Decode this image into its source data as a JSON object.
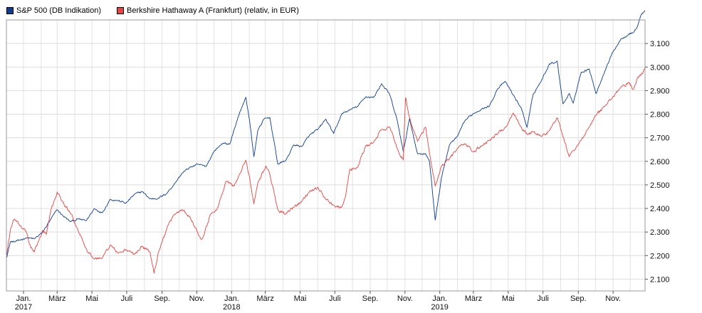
{
  "legend": [
    {
      "label": "S&P 500 (DB Indikation)",
      "color": "#0b3d91"
    },
    {
      "label": "Berkshire Hathaway A (Frankfurt) (relativ, in EUR)",
      "color": "#e8433f"
    }
  ],
  "chart_data": {
    "type": "line",
    "title": "",
    "xlabel": "",
    "ylabel": "",
    "xlim": [
      "2016-12-02",
      "2019-12-27"
    ],
    "ylim": [
      2050,
      3200
    ],
    "y_ticks": [
      2100,
      2200,
      2300,
      2400,
      2500,
      2600,
      2700,
      2800,
      2900,
      3000,
      3100
    ],
    "y_tick_labels": [
      "2.100",
      "2.200",
      "2.300",
      "2.400",
      "2.500",
      "2.600",
      "2.700",
      "2.800",
      "2.900",
      "3.000",
      "3.100"
    ],
    "x_ticks": [
      {
        "date": "2017-01-01",
        "label": "Jan.",
        "year": "2017"
      },
      {
        "date": "2017-03-01",
        "label": "März",
        "year": ""
      },
      {
        "date": "2017-05-01",
        "label": "Mai",
        "year": ""
      },
      {
        "date": "2017-07-01",
        "label": "Juli",
        "year": ""
      },
      {
        "date": "2017-09-01",
        "label": "Sep.",
        "year": ""
      },
      {
        "date": "2017-11-01",
        "label": "Nov.",
        "year": ""
      },
      {
        "date": "2018-01-01",
        "label": "Jan.",
        "year": "2018"
      },
      {
        "date": "2018-03-01",
        "label": "März",
        "year": ""
      },
      {
        "date": "2018-05-01",
        "label": "Mai",
        "year": ""
      },
      {
        "date": "2018-07-01",
        "label": "Juli",
        "year": ""
      },
      {
        "date": "2018-09-01",
        "label": "Sep.",
        "year": ""
      },
      {
        "date": "2018-11-01",
        "label": "Nov.",
        "year": ""
      },
      {
        "date": "2019-01-01",
        "label": "Jan.",
        "year": "2019"
      },
      {
        "date": "2019-03-01",
        "label": "März",
        "year": ""
      },
      {
        "date": "2019-05-01",
        "label": "Mai",
        "year": ""
      },
      {
        "date": "2019-07-01",
        "label": "Juli",
        "year": ""
      },
      {
        "date": "2019-09-01",
        "label": "Sep.",
        "year": ""
      },
      {
        "date": "2019-11-01",
        "label": "Nov.",
        "year": ""
      }
    ],
    "grid": true,
    "legend_position": "top-left",
    "series": [
      {
        "name": "S&P 500 (DB Indikation)",
        "color": "#0b3d91",
        "points": [
          [
            "2016-12-02",
            2190
          ],
          [
            "2016-12-09",
            2259
          ],
          [
            "2016-12-16",
            2258
          ],
          [
            "2016-12-23",
            2264
          ],
          [
            "2017-01-06",
            2276
          ],
          [
            "2017-01-20",
            2271
          ],
          [
            "2017-02-03",
            2297
          ],
          [
            "2017-02-17",
            2351
          ],
          [
            "2017-03-01",
            2395
          ],
          [
            "2017-03-10",
            2372
          ],
          [
            "2017-03-24",
            2344
          ],
          [
            "2017-04-07",
            2355
          ],
          [
            "2017-04-21",
            2348
          ],
          [
            "2017-05-05",
            2399
          ],
          [
            "2017-05-19",
            2382
          ],
          [
            "2017-06-02",
            2439
          ],
          [
            "2017-06-16",
            2433
          ],
          [
            "2017-06-30",
            2423
          ],
          [
            "2017-07-14",
            2459
          ],
          [
            "2017-07-28",
            2472
          ],
          [
            "2017-08-11",
            2441
          ],
          [
            "2017-08-25",
            2443
          ],
          [
            "2017-09-08",
            2461
          ],
          [
            "2017-09-22",
            2502
          ],
          [
            "2017-10-06",
            2549
          ],
          [
            "2017-10-20",
            2575
          ],
          [
            "2017-11-03",
            2587
          ],
          [
            "2017-11-17",
            2578
          ],
          [
            "2017-12-01",
            2642
          ],
          [
            "2017-12-15",
            2675
          ],
          [
            "2017-12-29",
            2674
          ],
          [
            "2018-01-12",
            2786
          ],
          [
            "2018-01-26",
            2872
          ],
          [
            "2018-02-02",
            2762
          ],
          [
            "2018-02-09",
            2620
          ],
          [
            "2018-02-16",
            2732
          ],
          [
            "2018-02-27",
            2780
          ],
          [
            "2018-03-09",
            2786
          ],
          [
            "2018-03-23",
            2588
          ],
          [
            "2018-04-06",
            2604
          ],
          [
            "2018-04-20",
            2670
          ],
          [
            "2018-05-04",
            2663
          ],
          [
            "2018-05-18",
            2712
          ],
          [
            "2018-06-01",
            2734
          ],
          [
            "2018-06-15",
            2779
          ],
          [
            "2018-06-29",
            2718
          ],
          [
            "2018-07-13",
            2801
          ],
          [
            "2018-07-27",
            2818
          ],
          [
            "2018-08-10",
            2833
          ],
          [
            "2018-08-24",
            2874
          ],
          [
            "2018-09-07",
            2871
          ],
          [
            "2018-09-21",
            2929
          ],
          [
            "2018-10-05",
            2885
          ],
          [
            "2018-10-19",
            2767
          ],
          [
            "2018-10-29",
            2641
          ],
          [
            "2018-11-09",
            2781
          ],
          [
            "2018-11-23",
            2632
          ],
          [
            "2018-12-07",
            2633
          ],
          [
            "2018-12-14",
            2599
          ],
          [
            "2018-12-24",
            2351
          ],
          [
            "2019-01-04",
            2531
          ],
          [
            "2019-01-18",
            2670
          ],
          [
            "2019-02-01",
            2706
          ],
          [
            "2019-02-15",
            2775
          ],
          [
            "2019-03-01",
            2803
          ],
          [
            "2019-03-15",
            2822
          ],
          [
            "2019-03-29",
            2834
          ],
          [
            "2019-04-12",
            2907
          ],
          [
            "2019-04-26",
            2939
          ],
          [
            "2019-05-10",
            2881
          ],
          [
            "2019-05-24",
            2826
          ],
          [
            "2019-06-03",
            2744
          ],
          [
            "2019-06-14",
            2886
          ],
          [
            "2019-06-28",
            2941
          ],
          [
            "2019-07-12",
            3013
          ],
          [
            "2019-07-26",
            3025
          ],
          [
            "2019-08-05",
            2844
          ],
          [
            "2019-08-16",
            2888
          ],
          [
            "2019-08-23",
            2847
          ],
          [
            "2019-09-06",
            2978
          ],
          [
            "2019-09-20",
            2992
          ],
          [
            "2019-10-02",
            2887
          ],
          [
            "2019-10-18",
            2986
          ],
          [
            "2019-11-01",
            3066
          ],
          [
            "2019-11-15",
            3120
          ],
          [
            "2019-11-29",
            3141
          ],
          [
            "2019-12-06",
            3146
          ],
          [
            "2019-12-13",
            3168
          ],
          [
            "2019-12-20",
            3221
          ],
          [
            "2019-12-27",
            3240
          ]
        ]
      },
      {
        "name": "Berkshire Hathaway A (Frankfurt) (relativ, in EUR)",
        "color": "#e8433f",
        "points": [
          [
            "2016-12-02",
            2195
          ],
          [
            "2016-12-09",
            2310
          ],
          [
            "2016-12-16",
            2355
          ],
          [
            "2016-12-23",
            2335
          ],
          [
            "2017-01-06",
            2300
          ],
          [
            "2017-01-13",
            2240
          ],
          [
            "2017-01-20",
            2215
          ],
          [
            "2017-01-27",
            2260
          ],
          [
            "2017-02-03",
            2305
          ],
          [
            "2017-02-10",
            2290
          ],
          [
            "2017-02-17",
            2380
          ],
          [
            "2017-02-24",
            2435
          ],
          [
            "2017-03-01",
            2470
          ],
          [
            "2017-03-10",
            2430
          ],
          [
            "2017-03-24",
            2380
          ],
          [
            "2017-04-07",
            2305
          ],
          [
            "2017-04-21",
            2230
          ],
          [
            "2017-05-05",
            2185
          ],
          [
            "2017-05-19",
            2190
          ],
          [
            "2017-06-02",
            2245
          ],
          [
            "2017-06-16",
            2210
          ],
          [
            "2017-06-30",
            2225
          ],
          [
            "2017-07-14",
            2205
          ],
          [
            "2017-07-28",
            2240
          ],
          [
            "2017-08-11",
            2215
          ],
          [
            "2017-08-18",
            2125
          ],
          [
            "2017-08-25",
            2210
          ],
          [
            "2017-09-08",
            2305
          ],
          [
            "2017-09-22",
            2375
          ],
          [
            "2017-10-06",
            2395
          ],
          [
            "2017-10-20",
            2365
          ],
          [
            "2017-11-03",
            2295
          ],
          [
            "2017-11-10",
            2270
          ],
          [
            "2017-11-24",
            2370
          ],
          [
            "2017-12-08",
            2405
          ],
          [
            "2017-12-22",
            2515
          ],
          [
            "2018-01-05",
            2495
          ],
          [
            "2018-01-19",
            2565
          ],
          [
            "2018-01-26",
            2605
          ],
          [
            "2018-02-02",
            2525
          ],
          [
            "2018-02-09",
            2420
          ],
          [
            "2018-02-16",
            2510
          ],
          [
            "2018-03-02",
            2580
          ],
          [
            "2018-03-09",
            2545
          ],
          [
            "2018-03-23",
            2395
          ],
          [
            "2018-04-06",
            2375
          ],
          [
            "2018-04-20",
            2405
          ],
          [
            "2018-05-04",
            2430
          ],
          [
            "2018-05-18",
            2475
          ],
          [
            "2018-06-01",
            2490
          ],
          [
            "2018-06-15",
            2440
          ],
          [
            "2018-06-29",
            2415
          ],
          [
            "2018-07-13",
            2405
          ],
          [
            "2018-07-20",
            2455
          ],
          [
            "2018-07-27",
            2565
          ],
          [
            "2018-08-10",
            2575
          ],
          [
            "2018-08-24",
            2665
          ],
          [
            "2018-09-07",
            2680
          ],
          [
            "2018-09-21",
            2735
          ],
          [
            "2018-10-05",
            2745
          ],
          [
            "2018-10-19",
            2650
          ],
          [
            "2018-10-29",
            2605
          ],
          [
            "2018-11-02",
            2870
          ],
          [
            "2018-11-09",
            2785
          ],
          [
            "2018-11-23",
            2685
          ],
          [
            "2018-12-07",
            2745
          ],
          [
            "2018-12-14",
            2635
          ],
          [
            "2018-12-24",
            2495
          ],
          [
            "2019-01-04",
            2580
          ],
          [
            "2019-01-18",
            2610
          ],
          [
            "2019-02-01",
            2655
          ],
          [
            "2019-02-15",
            2675
          ],
          [
            "2019-03-01",
            2640
          ],
          [
            "2019-03-15",
            2665
          ],
          [
            "2019-03-29",
            2690
          ],
          [
            "2019-04-12",
            2715
          ],
          [
            "2019-04-26",
            2745
          ],
          [
            "2019-05-10",
            2805
          ],
          [
            "2019-05-24",
            2745
          ],
          [
            "2019-06-03",
            2715
          ],
          [
            "2019-06-14",
            2725
          ],
          [
            "2019-06-28",
            2705
          ],
          [
            "2019-07-12",
            2730
          ],
          [
            "2019-07-26",
            2785
          ],
          [
            "2019-08-05",
            2705
          ],
          [
            "2019-08-16",
            2620
          ],
          [
            "2019-08-23",
            2645
          ],
          [
            "2019-09-06",
            2690
          ],
          [
            "2019-09-20",
            2745
          ],
          [
            "2019-10-02",
            2795
          ],
          [
            "2019-10-18",
            2835
          ],
          [
            "2019-11-01",
            2875
          ],
          [
            "2019-11-15",
            2915
          ],
          [
            "2019-11-29",
            2935
          ],
          [
            "2019-12-06",
            2905
          ],
          [
            "2019-12-13",
            2950
          ],
          [
            "2019-12-20",
            2965
          ],
          [
            "2019-12-27",
            2990
          ]
        ]
      }
    ]
  }
}
